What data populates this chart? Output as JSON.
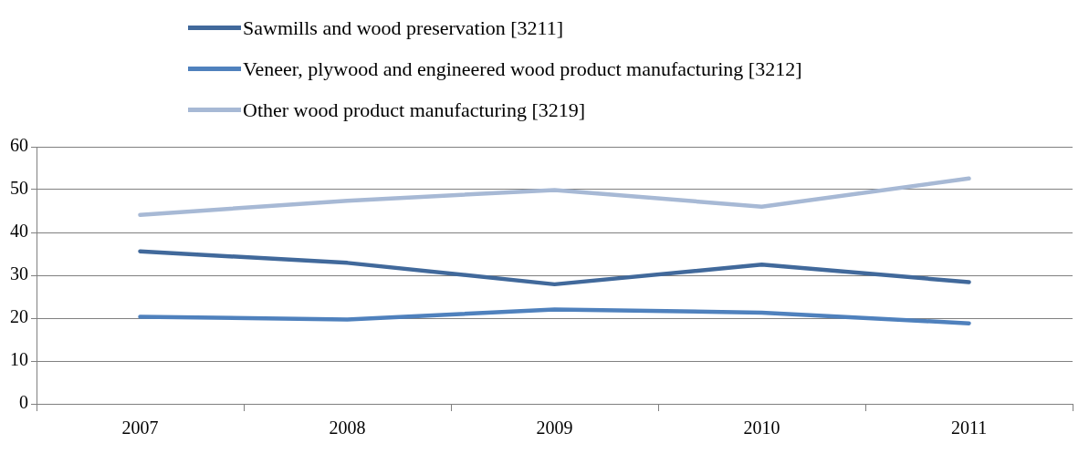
{
  "chart_data": {
    "type": "line",
    "categories": [
      "2007",
      "2008",
      "2009",
      "2010",
      "2011"
    ],
    "series": [
      {
        "name": "Sawmills and wood preservation [3211]",
        "color": "#41699b",
        "values": [
          35.6,
          32.9,
          27.9,
          32.5,
          28.4
        ]
      },
      {
        "name": "Veneer, plywood and engineered wood product manufacturing [3212]",
        "color": "#4f81bd",
        "values": [
          20.3,
          19.7,
          22.0,
          21.3,
          18.8
        ]
      },
      {
        "name": "Other wood product manufacturing [3219]",
        "color": "#a7b9d5",
        "values": [
          44.1,
          47.4,
          49.9,
          46.0,
          52.6
        ]
      }
    ],
    "ylim": [
      0,
      60
    ],
    "yticks": [
      0,
      10,
      20,
      30,
      40,
      50,
      60
    ],
    "grid": "y",
    "legend": "top",
    "marker": "none",
    "line_style": "solid"
  }
}
